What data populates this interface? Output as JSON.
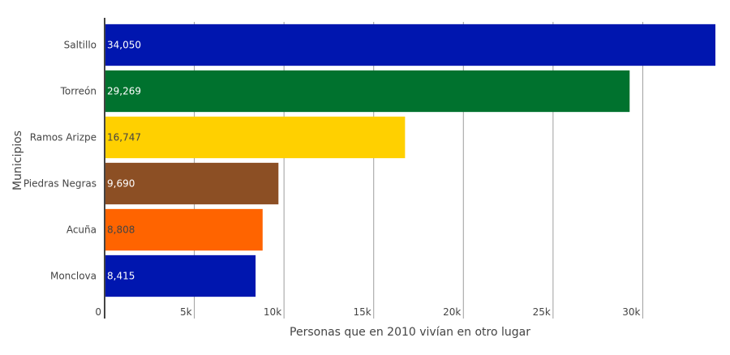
{
  "chart_data": {
    "type": "bar",
    "orientation": "horizontal",
    "categories": [
      "Saltillo",
      "Torreón",
      "Ramos Arizpe",
      "Piedras Negras",
      "Acuña",
      "Monclova"
    ],
    "values": [
      34050,
      29269,
      16747,
      9690,
      8808,
      8415
    ],
    "value_labels": [
      "34,050",
      "29,269",
      "16,747",
      "9,690",
      "8,808",
      "8,415"
    ],
    "colors": [
      "#0016af",
      "#00722e",
      "#ffd000",
      "#8c4f24",
      "#ff6400",
      "#0016af"
    ],
    "label_colors": [
      "#ffffff",
      "#ffffff",
      "#444444",
      "#ffffff",
      "#444444",
      "#ffffff"
    ],
    "xlabel": "Personas que en 2010 vivían en otro lugar",
    "ylabel": "Municipios",
    "xlim": [
      0,
      34050
    ],
    "x_ticks": [
      0,
      5000,
      10000,
      15000,
      20000,
      25000,
      30000
    ],
    "x_tick_labels": [
      "0",
      "5k",
      "10k",
      "15k",
      "20k",
      "25k",
      "30k"
    ],
    "grid": "vertical",
    "legend": "none"
  }
}
